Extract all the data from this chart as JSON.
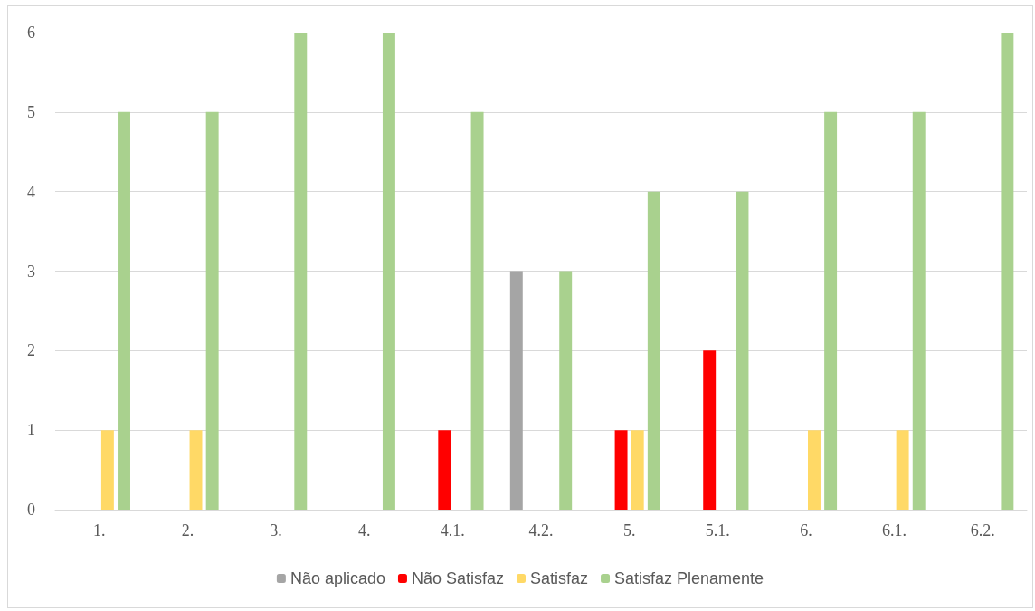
{
  "chart_data": {
    "type": "bar",
    "categories": [
      "1.",
      "2.",
      "3.",
      "4.",
      "4.1.",
      "4.2.",
      "5.",
      "5.1.",
      "6.",
      "6.1.",
      "6.2."
    ],
    "series": [
      {
        "name": "Não aplicado",
        "color": "#a5a5a5",
        "values": [
          0,
          0,
          0,
          0,
          0,
          3,
          0,
          0,
          0,
          0,
          0
        ]
      },
      {
        "name": "Não Satisfaz",
        "color": "#ff0000",
        "values": [
          0,
          0,
          0,
          0,
          1,
          0,
          1,
          2,
          0,
          0,
          0
        ]
      },
      {
        "name": "Satisfaz",
        "color": "#ffd966",
        "values": [
          1,
          1,
          0,
          0,
          0,
          0,
          1,
          0,
          1,
          1,
          0
        ]
      },
      {
        "name": "Satisfaz Plenamente",
        "color": "#a9d18e",
        "values": [
          5,
          5,
          6,
          6,
          5,
          3,
          4,
          4,
          5,
          5,
          6
        ]
      }
    ],
    "ylim": [
      0,
      6
    ],
    "yticks": [
      0,
      1,
      2,
      3,
      4,
      5,
      6
    ],
    "grid": "y",
    "legend": "bottom"
  }
}
